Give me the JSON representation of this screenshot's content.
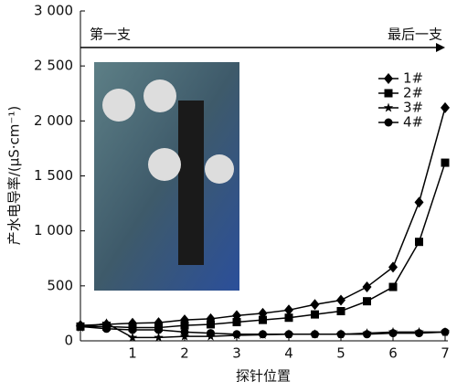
{
  "chart_data": {
    "type": "line",
    "y_label": "产水电导率/(μS·cm⁻¹)",
    "x_label": "探针位置",
    "annotations": [
      "第一支",
      "最后一支"
    ],
    "x": [
      0,
      0.5,
      1,
      1.5,
      2,
      2.5,
      3,
      3.5,
      4,
      4.5,
      5,
      5.5,
      6,
      6.5,
      7
    ],
    "xlim": [
      0,
      7
    ],
    "xticks": [
      1,
      2,
      3,
      4,
      5,
      6,
      7
    ],
    "ylim": [
      0,
      3000
    ],
    "yticks": [
      0,
      500,
      {
        "value": 1000,
        "label": "1 000"
      },
      {
        "value": 1500,
        "label": "1 500"
      },
      {
        "value": 2000,
        "label": "2 000"
      },
      {
        "value": 2500,
        "label": "2 500"
      },
      {
        "value": 3000,
        "label": "3 000"
      }
    ],
    "legend": "upper right",
    "series": [
      {
        "name": "1#",
        "color": "#000000",
        "marker": "diamond",
        "values": [
          140,
          150,
          160,
          165,
          190,
          200,
          230,
          250,
          280,
          330,
          370,
          490,
          670,
          1260,
          2120
        ]
      },
      {
        "name": "2#",
        "color": "#000000",
        "marker": "square",
        "values": [
          130,
          130,
          120,
          120,
          140,
          150,
          170,
          190,
          210,
          240,
          270,
          360,
          490,
          900,
          1620
        ]
      },
      {
        "name": "3#",
        "color": "#000000",
        "marker": "star",
        "values": [
          120,
          160,
          30,
          30,
          40,
          40,
          50,
          55,
          60,
          60,
          60,
          70,
          80,
          80,
          80
        ]
      },
      {
        "name": "4#",
        "color": "#000000",
        "marker": "circle",
        "values": [
          130,
          110,
          100,
          100,
          80,
          70,
          60,
          60,
          60,
          60,
          60,
          60,
          70,
          70,
          80
        ]
      }
    ]
  }
}
